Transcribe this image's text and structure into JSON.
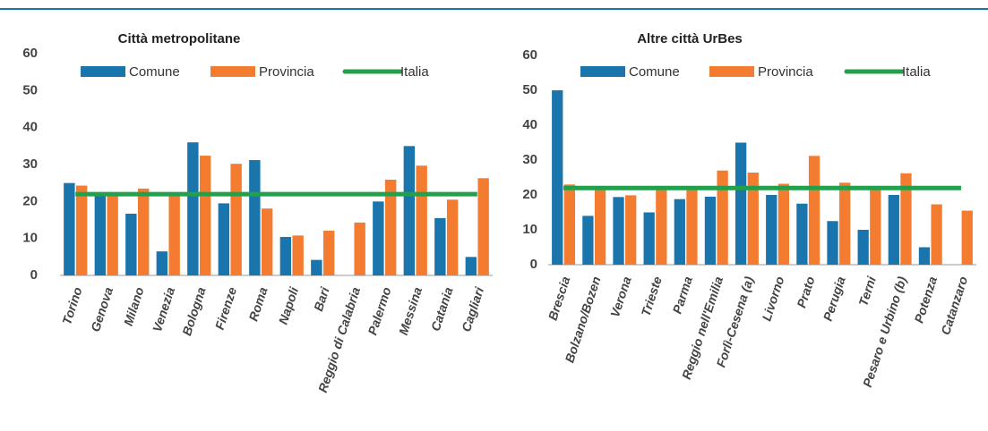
{
  "chart_data": [
    {
      "type": "bar",
      "title": "Città metropolitane",
      "categories": [
        "Torino",
        "Genova",
        "Milano",
        "Venezia",
        "Bologna",
        "Firenze",
        "Roma",
        "Napoli",
        "Bari",
        "Reggio di Calabria",
        "Palermo",
        "Messina",
        "Catania",
        "Cagliari"
      ],
      "series": [
        {
          "name": "Comune",
          "color": "#1a75ad",
          "values": [
            25,
            22,
            16.7,
            6.5,
            36,
            19.5,
            31.2,
            10.4,
            4.2,
            null,
            20,
            35,
            15.5,
            5
          ]
        },
        {
          "name": "Provincia",
          "color": "#f47c30",
          "values": [
            24.3,
            21.5,
            23.5,
            21.5,
            32.4,
            30.2,
            18.1,
            10.8,
            12.1,
            14.3,
            25.9,
            29.7,
            20.5,
            26.3
          ]
        },
        {
          "name": "Italia",
          "color": "#22a04b",
          "type": "line",
          "values": [
            22,
            22,
            22,
            22,
            22,
            22,
            22,
            22,
            22,
            22,
            22,
            22,
            22,
            22
          ]
        }
      ],
      "ylim": [
        0,
        60
      ],
      "yticks": [
        0,
        10,
        20,
        30,
        40,
        50,
        60
      ]
    },
    {
      "type": "bar",
      "title": "Altre città UrBes",
      "categories": [
        "Brescia",
        "Bolzano/Bozen",
        "Verona",
        "Trieste",
        "Parma",
        "Reggio nell'Emilia",
        "Forlì-Cesena (a)",
        "Livorno",
        "Prato",
        "Perugia",
        "Terni",
        "Pesaro e Urbino (b)",
        "Potenza",
        "Catanzaro"
      ],
      "series": [
        {
          "name": "Comune",
          "color": "#1a75ad",
          "values": [
            50,
            14,
            19.4,
            15,
            18.8,
            19.5,
            35,
            20,
            17.5,
            12.5,
            10,
            20,
            5,
            null
          ]
        },
        {
          "name": "Provincia",
          "color": "#f47c30",
          "values": [
            23,
            22,
            19.9,
            22,
            22,
            27,
            26.4,
            23.2,
            31.2,
            23.5,
            22,
            26.2,
            17.3,
            15.5
          ]
        },
        {
          "name": "Italia",
          "color": "#22a04b",
          "type": "line",
          "values": [
            22,
            22,
            22,
            22,
            22,
            22,
            22,
            22,
            22,
            22,
            22,
            22,
            22,
            22
          ]
        }
      ],
      "ylim": [
        0,
        60
      ],
      "yticks": [
        0,
        10,
        20,
        30,
        40,
        50,
        60
      ]
    }
  ]
}
